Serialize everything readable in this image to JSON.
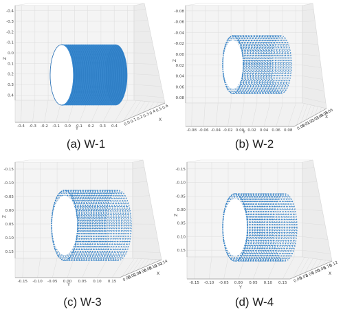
{
  "chart_data": [
    {
      "type": "scatter",
      "subtype": "3d-point-cloud",
      "caption": "(a) W-1",
      "xlabel": "X",
      "ylabel": "Y",
      "zlabel": "Z",
      "style": "solid",
      "ytick_labels": [
        "-0.4",
        "-0.3",
        "-0.2",
        "-0.1",
        "0.0",
        "0.1",
        "0.2",
        "0.3",
        "0.4"
      ],
      "xtick_labels": [
        "0.0",
        "0.1",
        "0.2",
        "0.3",
        "0.4",
        "0.5",
        "0.6"
      ],
      "ztick_labels": [
        "-0.4",
        "-0.3",
        "-0.2",
        "-0.1",
        "0.0",
        "0.1",
        "0.2",
        "0.3",
        "0.4"
      ],
      "shape": {
        "radius": 0.3,
        "length": 0.6,
        "rings": 26
      },
      "color": "#2f7fc6"
    },
    {
      "type": "scatter",
      "subtype": "3d-point-cloud",
      "caption": "(b) W-2",
      "xlabel": "X",
      "ylabel": "Y",
      "zlabel": "Z",
      "style": "stripes",
      "ytick_labels": [
        "-0.08",
        "-0.06",
        "-0.04",
        "-0.02",
        "0.00",
        "0.02",
        "0.04",
        "0.06",
        "0.08"
      ],
      "xtick_labels": [
        "0.00",
        "0.01",
        "0.02",
        "0.03",
        "0.04",
        "0.05",
        "0.06"
      ],
      "ztick_labels": [
        "-0.08",
        "-0.06",
        "-0.04",
        "-0.02",
        "0.00",
        "0.02",
        "0.04",
        "0.06",
        "0.08"
      ],
      "shape": {
        "radius": 0.05,
        "length": 0.06,
        "rings": 19
      },
      "color": "#2f7fc6"
    },
    {
      "type": "scatter",
      "subtype": "3d-point-cloud",
      "caption": "(c) W-3",
      "xlabel": "X",
      "ylabel": "Y",
      "zlabel": "Z",
      "style": "stripes",
      "ytick_labels": [
        "-0.15",
        "-0.10",
        "-0.05",
        "0.00",
        "0.05",
        "0.10",
        "0.15"
      ],
      "xtick_labels": [
        "0.00",
        "0.02",
        "0.04",
        "0.06",
        "0.08",
        "0.10",
        "0.12",
        "0.14"
      ],
      "ztick_labels": [
        "-0.15",
        "-0.10",
        "-0.05",
        "0.00",
        "0.05",
        "0.10",
        "0.15"
      ],
      "shape": {
        "radius": 0.11,
        "length": 0.14,
        "rings": 23
      },
      "color": "#2f7fc6"
    },
    {
      "type": "scatter",
      "subtype": "3d-point-cloud",
      "caption": "(d) W-4",
      "xlabel": "X",
      "ylabel": "Y",
      "zlabel": "Z",
      "style": "stripes",
      "ytick_labels": [
        "-0.15",
        "-0.10",
        "-0.05",
        "0.00",
        "0.05",
        "0.10",
        "0.15"
      ],
      "xtick_labels": [
        "0.00",
        "0.02",
        "0.04",
        "0.06",
        "0.08",
        "0.10",
        "0.12"
      ],
      "ztick_labels": [
        "-0.15",
        "-0.10",
        "-0.05",
        "0.00",
        "0.05",
        "0.10",
        "0.15"
      ],
      "shape": {
        "radius": 0.11,
        "length": 0.12,
        "rings": 21
      },
      "color": "#2f7fc6"
    }
  ]
}
